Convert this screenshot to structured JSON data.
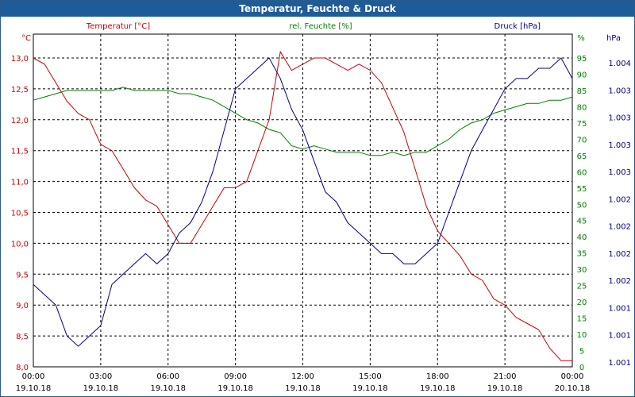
{
  "window": {
    "title": "Temperatur, Feuchte & Druck"
  },
  "chart_data": {
    "type": "line",
    "title": "Temperatur, Feuchte & Druck",
    "x_ticks": [
      {
        "time": "00:00",
        "date": "19.10.18"
      },
      {
        "time": "03:00",
        "date": "19.10.18"
      },
      {
        "time": "06:00",
        "date": "19.10.18"
      },
      {
        "time": "09:00",
        "date": "19.10.18"
      },
      {
        "time": "12:00",
        "date": "19.10.18"
      },
      {
        "time": "15:00",
        "date": "19.10.18"
      },
      {
        "time": "18:00",
        "date": "19.10.18"
      },
      {
        "time": "21:00",
        "date": "19.10.18"
      },
      {
        "time": "00:00",
        "date": "20.10.18"
      }
    ],
    "grid": true,
    "axes": {
      "left": {
        "unit": "°C",
        "range": [
          8.0,
          13.0
        ],
        "ticks": [
          "8,0",
          "8,5",
          "9,0",
          "9,5",
          "10,0",
          "10,5",
          "11,0",
          "11,5",
          "12,0",
          "12,5",
          "13,0"
        ],
        "color": "#cc0000"
      },
      "right1": {
        "unit": "%",
        "range": [
          0,
          95
        ],
        "ticks": [
          "0",
          "5",
          "10",
          "15",
          "20",
          "25",
          "30",
          "35",
          "40",
          "45",
          "50",
          "55",
          "60",
          "65",
          "70",
          "75",
          "80",
          "85",
          "90",
          "95"
        ],
        "color": "#008000"
      },
      "right2": {
        "unit": "hPa",
        "range": [
          1001.0,
          1004.0
        ],
        "ticks": [
          "1.001",
          "1.001",
          "1.001",
          "1.002",
          "1.002",
          "1.002",
          "1.002",
          "1.003",
          "1.003",
          "1.003",
          "1.003",
          "1.004"
        ],
        "color": "#00008b"
      }
    },
    "series": [
      {
        "name": "Temperatur [°C]",
        "axis": "left",
        "color": "#cc0000",
        "x": [
          0,
          0.5,
          1,
          1.5,
          2,
          2.5,
          3,
          3.5,
          4,
          4.5,
          5,
          5.5,
          6,
          6.5,
          7,
          7.5,
          8,
          8.5,
          9,
          9.5,
          10,
          10.5,
          11,
          11.5,
          12,
          12.5,
          13,
          13.5,
          14,
          14.5,
          15,
          15.5,
          16,
          16.5,
          17,
          17.5,
          18,
          18.5,
          19,
          19.5,
          20,
          20.5,
          21,
          21.5,
          22,
          22.5,
          23,
          23.5,
          24
        ],
        "values": [
          13.0,
          12.9,
          12.6,
          12.3,
          12.1,
          12.0,
          11.6,
          11.5,
          11.2,
          10.9,
          10.7,
          10.6,
          10.3,
          10.0,
          10.0,
          10.3,
          10.6,
          10.9,
          10.9,
          11.0,
          11.5,
          12.0,
          13.1,
          12.8,
          12.9,
          13.0,
          13.0,
          12.9,
          12.8,
          12.9,
          12.8,
          12.6,
          12.2,
          11.8,
          11.2,
          10.6,
          10.2,
          10.0,
          9.8,
          9.5,
          9.4,
          9.1,
          9.0,
          8.8,
          8.7,
          8.6,
          8.3,
          8.1,
          8.1
        ]
      },
      {
        "name": "rel. Feuchte [%]",
        "axis": "right1",
        "color": "#008000",
        "x": [
          0,
          0.5,
          1,
          1.5,
          2,
          2.5,
          3,
          3.5,
          4,
          4.5,
          5,
          5.5,
          6,
          6.5,
          7,
          7.5,
          8,
          8.5,
          9,
          9.5,
          10,
          10.5,
          11,
          11.5,
          12,
          12.5,
          13,
          13.5,
          14,
          14.5,
          15,
          15.5,
          16,
          16.5,
          17,
          17.5,
          18,
          18.5,
          19,
          19.5,
          20,
          20.5,
          21,
          21.5,
          22,
          22.5,
          23,
          23.5,
          24
        ],
        "values": [
          82,
          83,
          84,
          85,
          85,
          85,
          85,
          85,
          86,
          85,
          85,
          85,
          85,
          84,
          84,
          83,
          82,
          80,
          78,
          76,
          75,
          73,
          72,
          68,
          67,
          68,
          67,
          66,
          66,
          66,
          65,
          65,
          66,
          65,
          66,
          66,
          68,
          70,
          73,
          75,
          76,
          78,
          79,
          80,
          81,
          81,
          82,
          82,
          83
        ]
      },
      {
        "name": "Druck [hPa]",
        "axis": "right2",
        "color": "#00008b",
        "x": [
          0,
          0.5,
          1,
          1.5,
          2,
          2.5,
          3,
          3.5,
          4,
          4.5,
          5,
          5.5,
          6,
          6.5,
          7,
          7.5,
          8,
          8.5,
          9,
          9.5,
          10,
          10.5,
          11,
          11.5,
          12,
          12.5,
          13,
          13.5,
          14,
          14.5,
          15,
          15.5,
          16,
          16.5,
          17,
          17.5,
          18,
          18.5,
          19,
          19.5,
          20,
          20.5,
          21,
          21.5,
          22,
          22.5,
          23,
          23.5,
          24
        ],
        "values": [
          1001.8,
          1001.7,
          1001.6,
          1001.3,
          1001.2,
          1001.3,
          1001.4,
          1001.8,
          1001.9,
          1002.0,
          1002.1,
          1002.0,
          1002.1,
          1002.3,
          1002.4,
          1002.6,
          1002.9,
          1003.3,
          1003.7,
          1003.8,
          1003.9,
          1004.0,
          1003.8,
          1003.5,
          1003.3,
          1003.0,
          1002.7,
          1002.6,
          1002.4,
          1002.3,
          1002.2,
          1002.1,
          1002.1,
          1002.0,
          1002.0,
          1002.1,
          1002.2,
          1002.5,
          1002.8,
          1003.1,
          1003.3,
          1003.5,
          1003.7,
          1003.8,
          1003.8,
          1003.9,
          1003.9,
          1004.0,
          1003.8
        ]
      }
    ]
  }
}
